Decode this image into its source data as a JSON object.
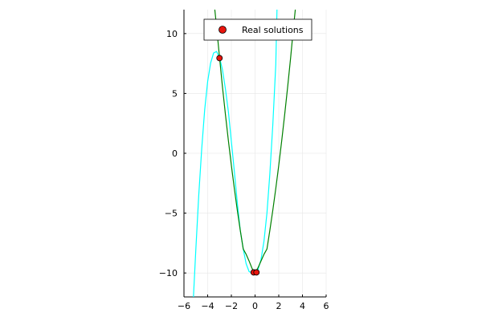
{
  "chart_data": {
    "type": "line",
    "xlim": [
      -6,
      6
    ],
    "ylim": [
      -12,
      12
    ],
    "xticks": [
      -6,
      -4,
      -2,
      0,
      2,
      4,
      6
    ],
    "yticks": [
      -10,
      -5,
      0,
      5,
      10
    ],
    "xtick_labels": [
      "−6",
      "−4",
      "−2",
      "0",
      "2",
      "4",
      "6"
    ],
    "ytick_labels": [
      "−10",
      "−5",
      "0",
      "5",
      "10"
    ],
    "grid": true,
    "legend_position": "top-right",
    "series": [
      {
        "color": "#00ffff",
        "kind": "line",
        "x": [
          -5.2,
          -5.0,
          -4.75,
          -4.5,
          -4.25,
          -4.0,
          -3.75,
          -3.5,
          -3.25,
          -3.0,
          -2.75,
          -2.5,
          -2.25,
          -2.0,
          -1.75,
          -1.5,
          -1.25,
          -1.0,
          -0.75,
          -0.5,
          -0.25,
          0.0,
          0.25,
          0.5,
          0.75,
          1.0,
          1.25,
          1.5,
          1.75,
          1.85
        ],
        "y": [
          -12.0,
          -8.0,
          -3.51,
          0.38,
          3.64,
          6.0,
          7.55,
          8.38,
          8.5,
          8.0,
          7.0,
          5.38,
          3.47,
          1.0,
          -1.5,
          -4.13,
          -6.44,
          -8.0,
          -9.23,
          -9.88,
          -10.0,
          -10.0,
          -9.72,
          -8.88,
          -7.34,
          -5.0,
          -1.72,
          2.38,
          7.41,
          12.0
        ]
      },
      {
        "color": "#008000",
        "kind": "line",
        "x": [
          -3.4,
          -3.25,
          -3.0,
          -2.75,
          -2.5,
          -2.25,
          -2.0,
          -1.75,
          -1.5,
          -1.25,
          -1.0,
          -0.75,
          -0.5,
          -0.25,
          0.0,
          0.25,
          0.5,
          0.75,
          1.0,
          1.25,
          1.5,
          1.75,
          2.0,
          2.25,
          2.5,
          2.75,
          3.0,
          3.25,
          3.4
        ],
        "y": [
          12.0,
          10.56,
          8.0,
          5.56,
          3.25,
          1.06,
          -1.0,
          -2.94,
          -4.75,
          -6.44,
          -8.0,
          -8.44,
          -9.0,
          -9.63,
          -10.0,
          -9.56,
          -9.0,
          -8.44,
          -8.0,
          -6.44,
          -4.75,
          -2.94,
          -1.0,
          1.06,
          3.25,
          5.56,
          8.0,
          10.56,
          12.0
        ]
      }
    ],
    "scatter": {
      "name": "Real solutions",
      "color": "#e8150d",
      "points": [
        {
          "x": -3.0,
          "y": 7.95
        },
        {
          "x": -0.12,
          "y": -9.95
        },
        {
          "x": 0.12,
          "y": -9.95
        }
      ]
    }
  }
}
